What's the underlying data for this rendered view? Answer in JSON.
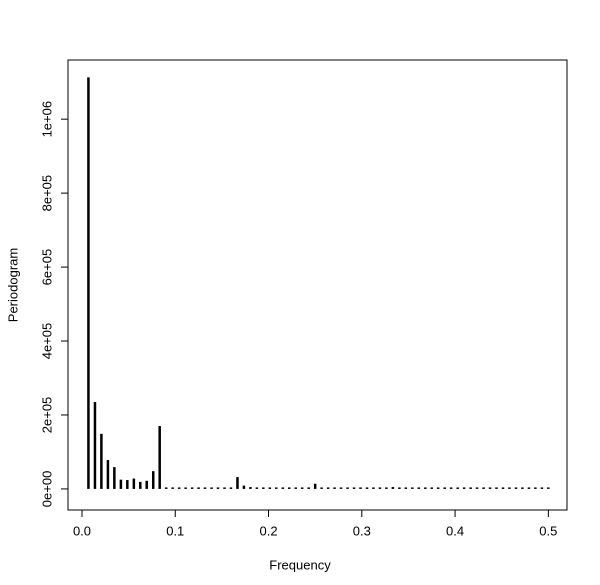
{
  "chart_data": {
    "type": "spike",
    "x_label": "Frequency",
    "y_label": "Periodogram",
    "x": [
      0.0069,
      0.0139,
      0.0208,
      0.0278,
      0.0347,
      0.0417,
      0.0486,
      0.0556,
      0.0625,
      0.0694,
      0.0764,
      0.0833,
      0.0903,
      0.0972,
      0.1042,
      0.1111,
      0.1181,
      0.125,
      0.1319,
      0.1389,
      0.1458,
      0.1528,
      0.1597,
      0.1667,
      0.1736,
      0.1806,
      0.1875,
      0.1944,
      0.2014,
      0.2083,
      0.2153,
      0.2222,
      0.2292,
      0.2361,
      0.2431,
      0.25,
      0.2569,
      0.2639,
      0.2708,
      0.2778,
      0.2847,
      0.2917,
      0.2986,
      0.3056,
      0.3125,
      0.3194,
      0.3264,
      0.3333,
      0.3403,
      0.3472,
      0.3542,
      0.3611,
      0.3681,
      0.375,
      0.3819,
      0.3889,
      0.3958,
      0.4028,
      0.4097,
      0.4167,
      0.4236,
      0.4306,
      0.4375,
      0.4444,
      0.4514,
      0.4583,
      0.4653,
      0.4722,
      0.4792,
      0.4861,
      0.4931,
      0.5
    ],
    "values": [
      1113000,
      235000,
      149000,
      78000,
      59000,
      25000,
      24000,
      28000,
      19000,
      22000,
      48000,
      170000,
      3000,
      2000,
      1500,
      1500,
      1500,
      1500,
      1500,
      1500,
      1500,
      1500,
      1500,
      32000,
      9000,
      5000,
      3000,
      1500,
      1500,
      1500,
      1500,
      1500,
      1500,
      1500,
      1500,
      14000,
      1500,
      1500,
      1500,
      1500,
      1500,
      1500,
      1500,
      1500,
      1500,
      1500,
      1500,
      5000,
      1500,
      1500,
      1500,
      1500,
      1500,
      1500,
      1500,
      1500,
      1500,
      1500,
      1500,
      4000,
      1500,
      1500,
      1500,
      1500,
      1500,
      1500,
      1500,
      1500,
      1500,
      1500,
      1500,
      1500
    ],
    "color": "#000000",
    "xlim": [
      -0.015,
      0.52
    ],
    "xticks": [
      {
        "value": 0,
        "label": "0.0"
      },
      0.1,
      0.2,
      0.3,
      0.4,
      0.5
    ],
    "ylim": [
      -57000,
      1160000
    ],
    "yticks": [
      {
        "value": 0,
        "label": "0e+00"
      },
      {
        "value": 200000,
        "label": "2e+05"
      },
      {
        "value": 400000,
        "label": "4e+05"
      },
      {
        "value": 600000,
        "label": "6e+05"
      },
      {
        "value": 800000,
        "label": "8e+05"
      },
      {
        "value": 1000000,
        "label": "1e+06"
      }
    ]
  }
}
